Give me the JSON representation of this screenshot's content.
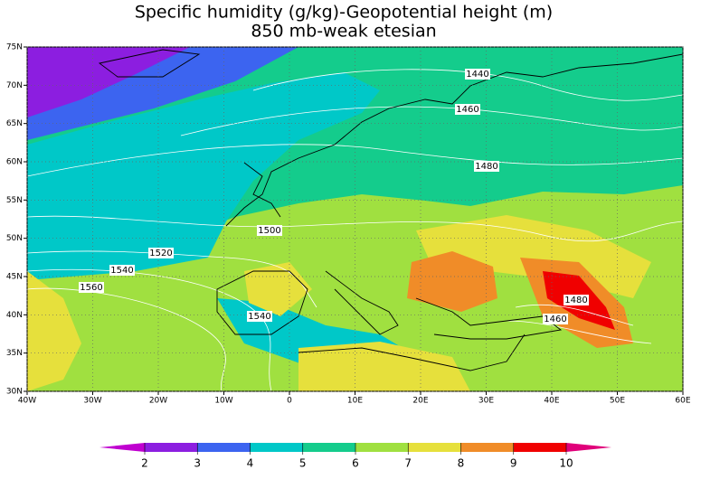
{
  "chart_data": {
    "type": "contour",
    "title": "Specific humidity (g/kg)-Geopotential height (m)",
    "subtitle": "850 mb-weak etesian",
    "xlim": [
      -40,
      60
    ],
    "ylim": [
      30,
      75
    ],
    "xticks": [
      {
        "value": -40,
        "label": "40W"
      },
      {
        "value": -30,
        "label": "30W"
      },
      {
        "value": -20,
        "label": "20W"
      },
      {
        "value": -10,
        "label": "10W"
      },
      0,
      {
        "value": 10,
        "label": "10E"
      },
      {
        "value": 20,
        "label": "20E"
      },
      {
        "value": 30,
        "label": "30E"
      },
      {
        "value": 40,
        "label": "40E"
      },
      {
        "value": 50,
        "label": "50E"
      },
      {
        "value": 60,
        "label": "60E"
      }
    ],
    "yticks": [
      {
        "value": 30,
        "label": "30N"
      },
      {
        "value": 35,
        "label": "35N"
      },
      {
        "value": 40,
        "label": "40N"
      },
      {
        "value": 45,
        "label": "45N"
      },
      {
        "value": 50,
        "label": "50N"
      },
      {
        "value": 55,
        "label": "55N"
      },
      {
        "value": 60,
        "label": "60N"
      },
      {
        "value": 65,
        "label": "65N"
      },
      {
        "value": 70,
        "label": "70N"
      },
      {
        "value": 75,
        "label": "75N"
      }
    ],
    "grid": true,
    "colorbar": {
      "levels": [
        2,
        3,
        4,
        5,
        6,
        7,
        8,
        9,
        10
      ],
      "colors": [
        "#c000d0",
        "#8c1ee0",
        "#3c64f0",
        "#00c8c8",
        "#14cc8c",
        "#a0e040",
        "#e6e03c",
        "#f08c28",
        "#f00000",
        "#e0007a"
      ]
    },
    "contour_labels": [
      1440,
      1460,
      1480,
      1500,
      1520,
      1540,
      1560,
      1540,
      1480,
      1460
    ]
  }
}
